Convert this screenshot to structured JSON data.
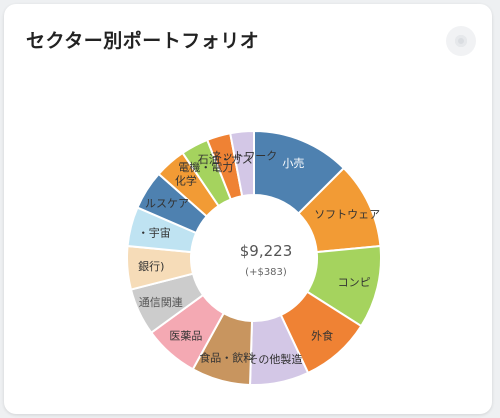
{
  "card": {
    "title": "セクター別ポートフォリオ",
    "menu_icon": "more-options-icon"
  },
  "chart_data": {
    "type": "pie",
    "donut": true,
    "total_label": "$9,223",
    "change_label": "(+$383)",
    "slices": [
      {
        "label": "小売",
        "value": 12.5,
        "color": "#4e81b0",
        "label_color": "#ffffff"
      },
      {
        "label": "ソフトウェア",
        "value": 11.0,
        "color": "#f29b35",
        "label_color": "#333333"
      },
      {
        "label": "コンピ",
        "value": 10.5,
        "color": "#a5d35e",
        "label_color": "#333333"
      },
      {
        "label": "外食",
        "value": 9.0,
        "color": "#ef8234",
        "label_color": "#333333"
      },
      {
        "label": "その他製造",
        "value": 7.5,
        "color": "#d3c7e6",
        "label_color": "#333333"
      },
      {
        "label": "食品・飲料",
        "value": 7.5,
        "color": "#c8955f",
        "label_color": "#333333"
      },
      {
        "label": "医薬品",
        "value": 7.0,
        "color": "#f4a9b3",
        "label_color": "#333333"
      },
      {
        "label": "通信関連",
        "value": 6.0,
        "color": "#cccccc",
        "label_color": "#555555"
      },
      {
        "label": "銀行)",
        "value": 5.5,
        "color": "#f6dcb8",
        "label_color": "#333333"
      },
      {
        "label": "・宇宙",
        "value": 5.0,
        "color": "#bfe3f2",
        "label_color": "#333333"
      },
      {
        "label": "ルスケア",
        "value": 5.0,
        "color": "#4e81b0",
        "label_color": "#333333"
      },
      {
        "label": "化学",
        "value": 4.0,
        "color": "#f29b35",
        "label_color": "#333333"
      },
      {
        "label": "電機・電力",
        "value": 3.5,
        "color": "#a5d35e",
        "label_color": "#333333"
      },
      {
        "label": "石油・ガス",
        "value": 3.0,
        "color": "#ef8234",
        "label_color": "#333333"
      },
      {
        "label": "ネットワーク",
        "value": 3.0,
        "color": "#d3c7e6",
        "label_color": "#333333"
      }
    ]
  }
}
